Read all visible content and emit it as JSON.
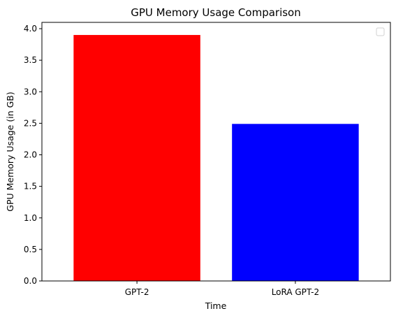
{
  "chart_data": {
    "type": "bar",
    "title": "GPU Memory Usage Comparison",
    "xlabel": "Time",
    "ylabel": "GPU Memory Usage (in GB)",
    "categories": [
      "GPT-2",
      "LoRA GPT-2"
    ],
    "values": [
      3.9,
      2.49
    ],
    "colors": [
      "#ff0000",
      "#0000ff"
    ],
    "ylim": [
      0,
      4.1
    ],
    "yticks": [
      0.0,
      0.5,
      1.0,
      1.5,
      2.0,
      2.5,
      3.0,
      3.5,
      4.0
    ],
    "ytick_labels": [
      "0.0",
      "0.5",
      "1.0",
      "1.5",
      "2.0",
      "2.5",
      "3.0",
      "3.5",
      "4.0"
    ],
    "grid": false,
    "legend": {
      "placement": "top-right",
      "entries": []
    }
  }
}
